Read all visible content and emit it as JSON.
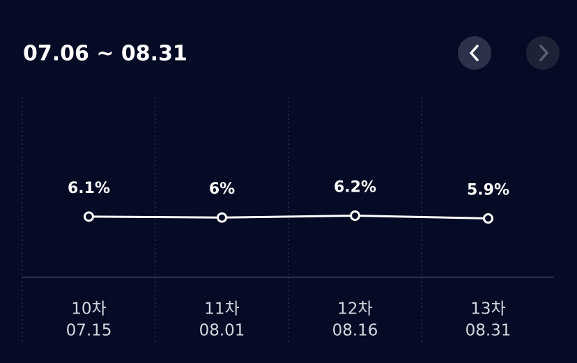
{
  "chart_data": {
    "type": "line",
    "title": "07.06 ~ 08.31",
    "categories": [
      "10차",
      "11차",
      "12차",
      "13차"
    ],
    "dates": [
      "07.15",
      "08.01",
      "08.16",
      "08.31"
    ],
    "values": [
      6.1,
      6,
      6.2,
      5.9
    ],
    "value_labels": [
      "6.1%",
      "6%",
      "6.2%",
      "5.9%"
    ],
    "color": "#ffffff",
    "ylim": [
      0,
      10
    ]
  }
}
